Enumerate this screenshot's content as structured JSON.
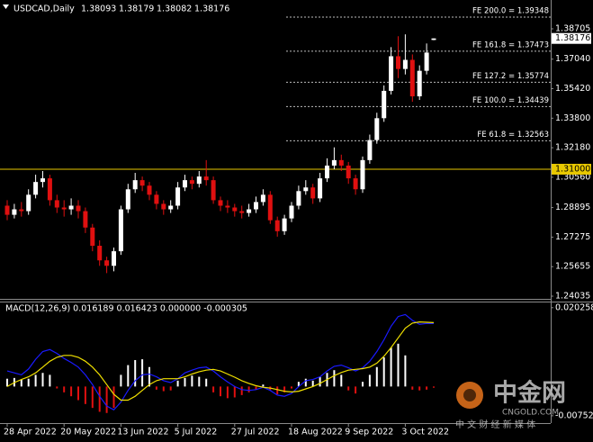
{
  "chart_data": [
    {
      "type": "candlestick",
      "title": "USDCAD,Daily",
      "header_values": [
        1.38093,
        1.38179,
        1.38082,
        1.38176
      ],
      "categories": [
        "28 Apr 2022",
        null,
        null,
        null,
        null,
        null,
        null,
        null,
        "20 May 2022",
        null,
        null,
        null,
        null,
        null,
        null,
        null,
        "13 Jun 2022",
        null,
        null,
        null,
        null,
        null,
        null,
        null,
        "5 Jul 2022",
        null,
        null,
        null,
        null,
        null,
        null,
        null,
        "27 Jul 2022",
        null,
        null,
        null,
        null,
        null,
        null,
        null,
        "18 Aug 2022",
        null,
        null,
        null,
        null,
        null,
        null,
        null,
        "9 Sep 2022",
        null,
        null,
        null,
        null,
        null,
        null,
        null,
        "3 Oct 2022",
        null,
        null,
        null,
        null
      ],
      "open": [
        1.29,
        1.285,
        1.288,
        1.287,
        1.296,
        1.303,
        1.305,
        1.293,
        1.289,
        1.288,
        1.29,
        1.287,
        1.278,
        1.268,
        1.26,
        1.257,
        1.265,
        1.288,
        1.299,
        1.304,
        1.301,
        1.296,
        1.291,
        1.288,
        1.29,
        1.3,
        1.304,
        1.302,
        1.306,
        1.304,
        1.293,
        1.29,
        1.289,
        1.287,
        1.286,
        1.288,
        1.292,
        1.296,
        1.282,
        1.276,
        1.283,
        1.29,
        1.298,
        1.3,
        1.294,
        1.305,
        1.312,
        1.315,
        1.312,
        1.305,
        1.299,
        1.315,
        1.326,
        1.338,
        1.353,
        1.372,
        1.365,
        1.37,
        1.35,
        1.364,
        1.38093
      ],
      "high": [
        1.293,
        1.291,
        1.292,
        1.299,
        1.307,
        1.309,
        1.307,
        1.296,
        1.293,
        1.294,
        1.293,
        1.289,
        1.28,
        1.271,
        1.262,
        1.267,
        1.29,
        1.302,
        1.308,
        1.306,
        1.303,
        1.298,
        1.293,
        1.293,
        1.303,
        1.307,
        1.306,
        1.309,
        1.315,
        1.306,
        1.295,
        1.293,
        1.291,
        1.29,
        1.291,
        1.295,
        1.299,
        1.298,
        1.284,
        1.285,
        1.292,
        1.301,
        1.304,
        1.302,
        1.308,
        1.316,
        1.322,
        1.318,
        1.314,
        1.307,
        1.317,
        1.329,
        1.341,
        1.356,
        1.377,
        1.383,
        1.384,
        1.373,
        1.367,
        1.379,
        1.38179
      ],
      "low": [
        1.282,
        1.283,
        1.284,
        1.285,
        1.294,
        1.3,
        1.29,
        1.286,
        1.284,
        1.285,
        1.283,
        1.275,
        1.265,
        1.257,
        1.253,
        1.254,
        1.263,
        1.286,
        1.297,
        1.298,
        1.293,
        1.288,
        1.285,
        1.286,
        1.288,
        1.298,
        1.299,
        1.3,
        1.301,
        1.291,
        1.287,
        1.286,
        1.284,
        1.283,
        1.284,
        1.286,
        1.29,
        1.28,
        1.273,
        1.274,
        1.281,
        1.288,
        1.296,
        1.291,
        1.292,
        1.303,
        1.31,
        1.309,
        1.302,
        1.296,
        1.297,
        1.313,
        1.324,
        1.336,
        1.351,
        1.36,
        1.362,
        1.347,
        1.348,
        1.362,
        1.38082
      ],
      "close": [
        1.285,
        1.288,
        1.287,
        1.296,
        1.303,
        1.305,
        1.293,
        1.289,
        1.288,
        1.29,
        1.287,
        1.278,
        1.268,
        1.26,
        1.257,
        1.265,
        1.288,
        1.299,
        1.304,
        1.301,
        1.296,
        1.291,
        1.288,
        1.29,
        1.3,
        1.304,
        1.302,
        1.306,
        1.304,
        1.293,
        1.29,
        1.289,
        1.287,
        1.286,
        1.288,
        1.292,
        1.296,
        1.282,
        1.276,
        1.283,
        1.29,
        1.298,
        1.3,
        1.294,
        1.305,
        1.312,
        1.315,
        1.312,
        1.305,
        1.299,
        1.315,
        1.326,
        1.338,
        1.353,
        1.372,
        1.365,
        1.37,
        1.35,
        1.364,
        1.374,
        1.38176
      ],
      "up_color": "#ffffff",
      "down_color": "#e01010",
      "ylim": [
        1.23887,
        1.40137
      ],
      "yticks": [
        1.38705,
        {
          "value": 1.3704,
          "label": "1.37040"
        },
        {
          "value": 1.3542,
          "label": "1.35420"
        },
        {
          "value": 1.338,
          "label": "1.33800"
        },
        {
          "value": 1.3218,
          "label": "1.32180"
        },
        {
          "value": 1.3056,
          "label": "1.30560"
        },
        1.28895,
        1.27275,
        1.25655,
        1.24035
      ],
      "levels": [
        {
          "label": "FE 200.0 = 1.39348",
          "value": 1.39348
        },
        {
          "label": "FE 161.8 = 1.37473",
          "value": 1.37473
        },
        {
          "label": "FE 127.2 = 1.35774",
          "value": 1.35774
        },
        {
          "label": "FE 100.0 = 1.34439",
          "value": 1.34439
        },
        {
          "label": "FE 61.8 = 1.32563",
          "value": 1.32563
        }
      ],
      "hline": {
        "value": 1.31,
        "label": "1.31000",
        "color": "#e8c800"
      },
      "price_tag": 1.38176
    },
    {
      "type": "macd",
      "title": "MACD(12,26,9) 0.016189 0.016423 0.000000 -0.000305",
      "histogram": [
        0.002,
        0.0022,
        0.0018,
        0.002,
        0.003,
        0.0035,
        0.003,
        -0.0005,
        -0.0015,
        -0.0025,
        -0.0035,
        -0.0045,
        -0.0055,
        -0.0065,
        -0.0068,
        -0.0055,
        0.003,
        0.0055,
        0.0068,
        0.007,
        0.005,
        -0.0008,
        -0.0012,
        -0.001,
        0.0015,
        0.0022,
        0.0028,
        0.0025,
        0.002,
        -0.0015,
        -0.0025,
        -0.003,
        -0.0028,
        -0.0022,
        -0.0015,
        -0.0008,
        0.0005,
        -0.001,
        -0.002,
        -0.0015,
        -0.0005,
        0.0012,
        0.002,
        0.0015,
        0.0025,
        0.0035,
        0.0042,
        0.003,
        -0.001,
        -0.0018,
        0.0012,
        0.003,
        0.005,
        0.0075,
        0.01,
        0.011,
        0.008,
        -0.0008,
        -0.001,
        -0.0008,
        -0.000305
      ],
      "up_color": "#ffffff",
      "down_color": "#e01010",
      "series": [
        {
          "color": "#1a1aff",
          "values": [
            0.004,
            0.0035,
            0.003,
            0.0045,
            0.007,
            0.009,
            0.0095,
            0.0085,
            0.0072,
            0.0062,
            0.005,
            0.003,
            0.0005,
            -0.0025,
            -0.005,
            -0.006,
            -0.004,
            -0.001,
            0.0015,
            0.003,
            0.0032,
            0.0025,
            0.0015,
            0.001,
            0.002,
            0.0035,
            0.0042,
            0.0048,
            0.005,
            0.004,
            0.0025,
            0.0012,
            0.0,
            -0.0008,
            -0.001,
            -0.0008,
            -0.0002,
            -0.001,
            -0.0022,
            -0.0025,
            -0.0018,
            0.0,
            0.0015,
            0.0018,
            0.0025,
            0.004,
            0.0052,
            0.0055,
            0.0048,
            0.004,
            0.0048,
            0.0065,
            0.009,
            0.012,
            0.0155,
            0.018,
            0.0185,
            0.017,
            0.016,
            0.0162,
            0.016189
          ]
        },
        {
          "color": "#f0e000",
          "values": [
            0.0,
            0.001,
            0.0018,
            0.0025,
            0.0035,
            0.005,
            0.0065,
            0.0075,
            0.008,
            0.008,
            0.0075,
            0.0065,
            0.005,
            0.003,
            0.0005,
            -0.002,
            -0.0035,
            -0.0035,
            -0.0025,
            -0.001,
            0.0005,
            0.0015,
            0.002,
            0.002,
            0.002,
            0.0025,
            0.0032,
            0.0038,
            0.0042,
            0.0044,
            0.004,
            0.0032,
            0.0024,
            0.0015,
            0.0008,
            0.0002,
            -0.0002,
            -0.0004,
            -0.0008,
            -0.0012,
            -0.0014,
            -0.0012,
            -0.0006,
            0.0,
            0.0008,
            0.0018,
            0.0028,
            0.0036,
            0.0042,
            0.0044,
            0.0046,
            0.005,
            0.006,
            0.0078,
            0.01,
            0.0125,
            0.015,
            0.0163,
            0.0166,
            0.0165,
            0.016423
          ]
        }
      ],
      "ylim": [
        -0.0094,
        0.0216
      ],
      "yticks": [
        0.020258,
        -0.007521
      ]
    }
  ],
  "watermark": {
    "logo": "中金网",
    "site": "CNGOLD.COM",
    "slogan": "中 文 财 经 新 媒 体"
  }
}
